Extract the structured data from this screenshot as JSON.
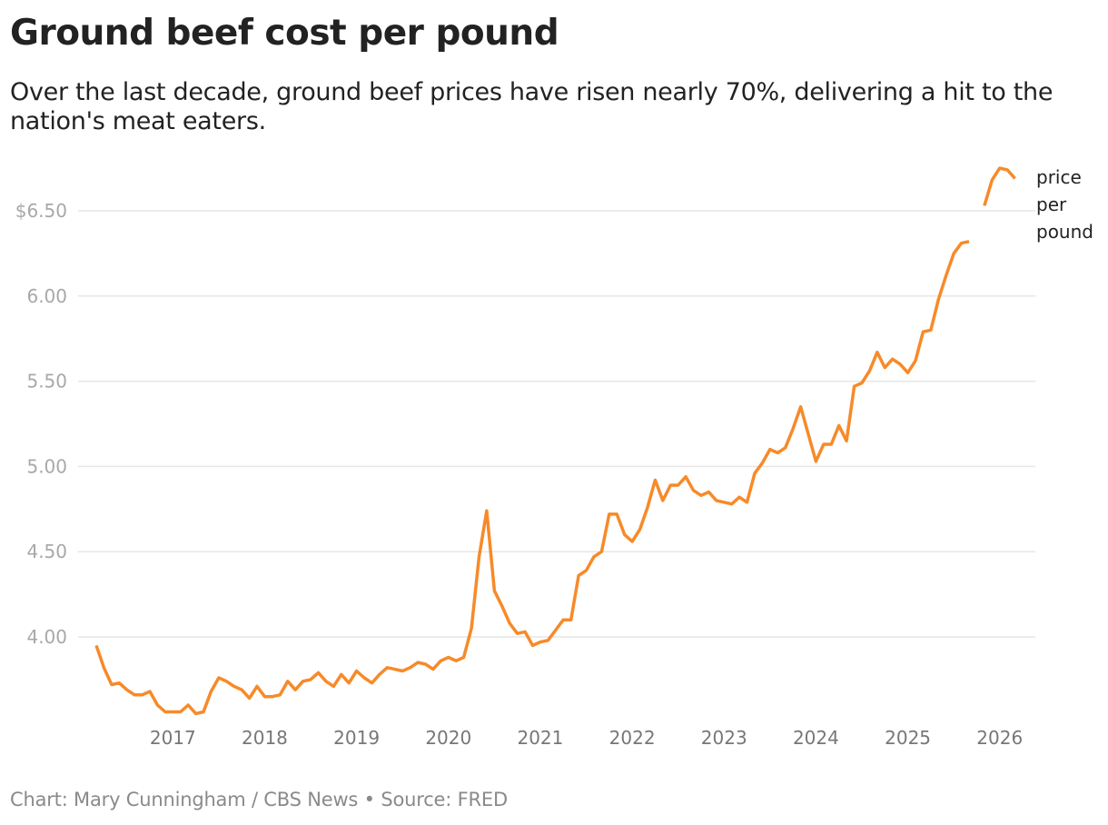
{
  "header": {
    "title": "Ground beef cost per pound",
    "subtitle": "Over the last decade, ground beef prices have risen nearly 70%, delivering a hit to the nation's meat eaters."
  },
  "footer": {
    "credit": "Chart: Mary Cunningham / CBS News",
    "separator": "•",
    "source": "Source: FRED"
  },
  "colors": {
    "line": "#f78a29",
    "grid": "#e6e6e6"
  },
  "chart_data": {
    "type": "line",
    "title": "Ground beef cost per pound",
    "xlabel": "",
    "ylabel": "",
    "ylim": [
      3.5,
      6.8
    ],
    "grid": true,
    "y_ticks": [
      {
        "value": 6.5,
        "label": "$6.50"
      },
      {
        "value": 6.0,
        "label": "6.00"
      },
      {
        "value": 5.5,
        "label": "5.50"
      },
      {
        "value": 5.0,
        "label": "5.00"
      },
      {
        "value": 4.5,
        "label": "4.50"
      },
      {
        "value": 4.0,
        "label": "4.00"
      }
    ],
    "x_ticks": [
      "2017",
      "2018",
      "2019",
      "2020",
      "2021",
      "2022",
      "2023",
      "2024",
      "2025",
      "2026"
    ],
    "x_start": "2016-03",
    "x_frequency": "monthly",
    "series": [
      {
        "name": "price per pound",
        "label_lines": [
          "price",
          "per",
          "pound"
        ],
        "values": [
          3.95,
          3.82,
          3.72,
          3.73,
          3.69,
          3.66,
          3.66,
          3.68,
          3.6,
          3.56,
          3.56,
          3.56,
          3.6,
          3.55,
          3.56,
          3.68,
          3.76,
          3.74,
          3.71,
          3.69,
          3.64,
          3.71,
          3.65,
          3.65,
          3.66,
          3.74,
          3.69,
          3.74,
          3.75,
          3.79,
          3.74,
          3.71,
          3.78,
          3.73,
          3.8,
          3.76,
          3.73,
          3.78,
          3.82,
          3.81,
          3.8,
          3.82,
          3.85,
          3.84,
          3.81,
          3.86,
          3.88,
          3.86,
          3.88,
          4.05,
          4.47,
          4.74,
          4.27,
          4.18,
          4.08,
          4.02,
          4.03,
          3.95,
          3.97,
          3.98,
          4.04,
          4.1,
          4.1,
          4.36,
          4.39,
          4.47,
          4.5,
          4.72,
          4.72,
          4.6,
          4.56,
          4.63,
          4.76,
          4.92,
          4.8,
          4.89,
          4.89,
          4.94,
          4.86,
          4.83,
          4.85,
          4.8,
          4.79,
          4.78,
          4.82,
          4.79,
          4.96,
          5.02,
          5.1,
          5.08,
          5.11,
          5.22,
          5.35,
          5.19,
          5.03,
          5.13,
          5.13,
          5.24,
          5.15,
          5.47,
          5.49,
          5.56,
          5.67,
          5.58,
          5.63,
          5.6,
          5.55,
          5.62,
          5.79,
          5.8,
          5.98,
          6.12,
          6.25,
          6.31,
          6.32,
          null,
          6.53,
          6.68,
          6.75,
          6.74,
          6.69
        ]
      }
    ]
  }
}
